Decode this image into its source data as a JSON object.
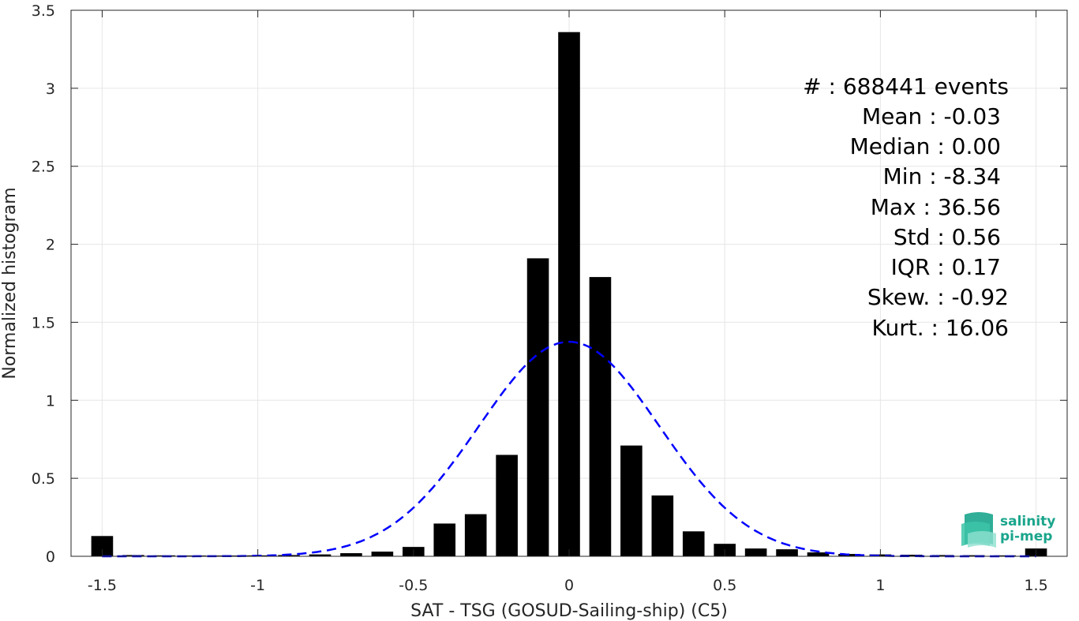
{
  "chart_data": {
    "type": "bar",
    "title": "",
    "xlabel": "SAT - TSG (GOSUD-Sailing-ship) (C5)",
    "ylabel": "Normalized histogram",
    "xlim": [
      -1.6,
      1.6
    ],
    "ylim": [
      0,
      3.5
    ],
    "xticks": [
      -1.5,
      -1,
      -0.5,
      0,
      0.5,
      1,
      1.5
    ],
    "xtick_labels": [
      "-1.5",
      "-1",
      "-0.5",
      "0",
      "0.5",
      "1",
      "1.5"
    ],
    "yticks": [
      0,
      0.5,
      1,
      1.5,
      2,
      2.5,
      3,
      3.5
    ],
    "ytick_labels": [
      "0",
      "0.5",
      "1",
      "1.5",
      "2",
      "2.5",
      "3",
      "3.5"
    ],
    "grid": true,
    "bin_width": 0.1,
    "bar_color": "#000000",
    "bins": [
      {
        "x": -1.5,
        "value": 0.13
      },
      {
        "x": -1.4,
        "value": 0.008
      },
      {
        "x": -1.3,
        "value": 0.006
      },
      {
        "x": -1.2,
        "value": 0.005
      },
      {
        "x": -1.1,
        "value": 0.005
      },
      {
        "x": -1.0,
        "value": 0.006
      },
      {
        "x": -0.9,
        "value": 0.008
      },
      {
        "x": -0.8,
        "value": 0.012
      },
      {
        "x": -0.7,
        "value": 0.02
      },
      {
        "x": -0.6,
        "value": 0.03
      },
      {
        "x": -0.5,
        "value": 0.06
      },
      {
        "x": -0.4,
        "value": 0.21
      },
      {
        "x": -0.3,
        "value": 0.27
      },
      {
        "x": -0.2,
        "value": 0.65
      },
      {
        "x": -0.1,
        "value": 1.91
      },
      {
        "x": 0.0,
        "value": 3.36
      },
      {
        "x": 0.1,
        "value": 1.79
      },
      {
        "x": 0.2,
        "value": 0.71
      },
      {
        "x": 0.3,
        "value": 0.39
      },
      {
        "x": 0.4,
        "value": 0.16
      },
      {
        "x": 0.5,
        "value": 0.08
      },
      {
        "x": 0.6,
        "value": 0.05
      },
      {
        "x": 0.7,
        "value": 0.045
      },
      {
        "x": 0.8,
        "value": 0.025
      },
      {
        "x": 0.9,
        "value": 0.015
      },
      {
        "x": 1.0,
        "value": 0.012
      },
      {
        "x": 1.1,
        "value": 0.01
      },
      {
        "x": 1.2,
        "value": 0.008
      },
      {
        "x": 1.3,
        "value": 0.007
      },
      {
        "x": 1.4,
        "value": 0.006
      },
      {
        "x": 1.5,
        "value": 0.05
      }
    ],
    "gaussian_fit": {
      "mean": 0.0,
      "std": 0.29,
      "peak": 1.375,
      "color": "#0000ff",
      "style": "dashed",
      "x_range": [
        -1.5,
        1.5
      ]
    }
  },
  "stats": {
    "events": "#  : 688441 events",
    "mean": "Mean : -0.03",
    "median": "Median : 0.00",
    "min": "Min : -8.34",
    "max": "Max : 36.56",
    "std": "Std : 0.56",
    "iqr": "IQR : 0.17",
    "skew": "Skew. : -0.92",
    "kurt": "Kurt. : 16.06"
  },
  "logo": {
    "line1": "salinity",
    "line2": "pi-mep",
    "color": "#1aa58c"
  }
}
